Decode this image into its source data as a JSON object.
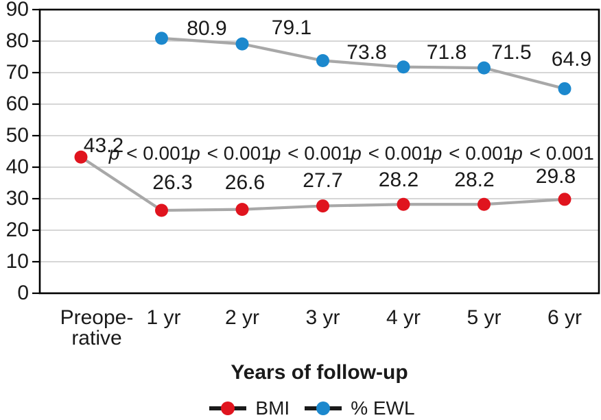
{
  "chart_data": {
    "type": "line",
    "title": "",
    "xlabel": "Years of follow-up",
    "ylabel": "",
    "ylim": [
      0,
      90
    ],
    "yticks": [
      0,
      10,
      20,
      30,
      40,
      50,
      60,
      70,
      80,
      90
    ],
    "grid": true,
    "legend_position": "bottom",
    "categories": [
      "Preope-\nrative",
      "1 yr",
      "2 yr",
      "3 yr",
      "4 yr",
      "5 yr",
      "6 yr"
    ],
    "series": [
      {
        "name": "BMI",
        "color": "#e0141e",
        "values": [
          43.2,
          26.3,
          26.6,
          27.7,
          28.2,
          28.2,
          29.8
        ]
      },
      {
        "name": "% EWL",
        "color": "#1c88cd",
        "values": [
          null,
          80.9,
          79.1,
          73.8,
          71.8,
          71.5,
          64.9
        ]
      }
    ],
    "annotations": {
      "p_values": [
        "p < 0.001",
        "p < 0.001",
        "p < 0.001",
        "p < 0.001",
        "p < 0.001",
        "p < 0.001"
      ],
      "at_categories": [
        "1 yr",
        "2 yr",
        "3 yr",
        "4 yr",
        "5 yr",
        "6 yr"
      ]
    },
    "colors": {
      "series_line": "#a8a8a8",
      "gridline": "#c8c8c8",
      "axis": "#000000",
      "text": "#1a1a1a"
    }
  }
}
